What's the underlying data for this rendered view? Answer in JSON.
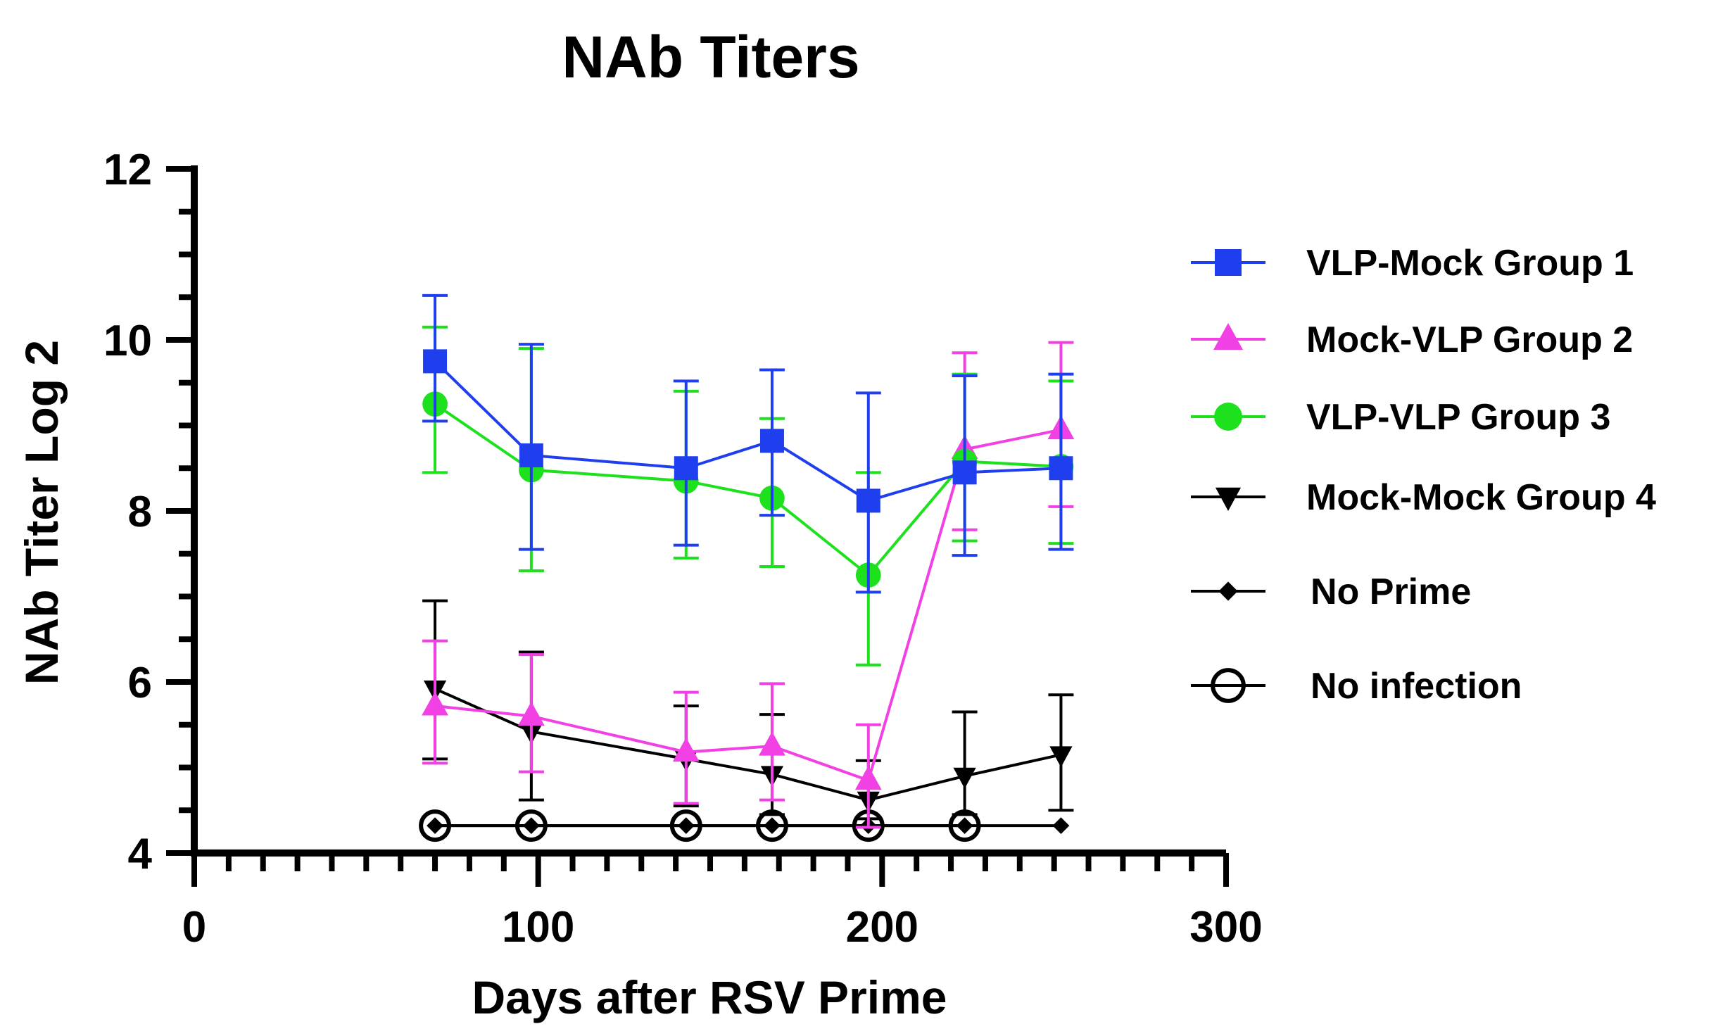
{
  "chart_data": {
    "type": "line",
    "title": "NAb Titers",
    "xlabel": "Days after RSV Prime",
    "ylabel": "NAb Titer Log 2",
    "xlim": [
      0,
      300
    ],
    "ylim": [
      4,
      12
    ],
    "xticks": [
      0,
      100,
      200,
      300
    ],
    "xtick_labels": [
      "0",
      "100",
      "200",
      "300"
    ],
    "yticks": [
      4,
      6,
      8,
      10,
      12
    ],
    "ytick_labels": [
      "4",
      "6",
      "8",
      "10",
      "12"
    ],
    "legend_position": "right",
    "series": [
      {
        "name": "VLP-Mock Group 1",
        "color": "#1f3fef",
        "marker": "square",
        "x": [
          70,
          98,
          143,
          168,
          196,
          224,
          252
        ],
        "y": [
          9.75,
          8.65,
          8.5,
          8.82,
          8.12,
          8.45,
          8.5
        ],
        "err_low": [
          9.05,
          7.55,
          7.6,
          7.95,
          7.05,
          7.48,
          7.55
        ],
        "err_high": [
          10.52,
          9.95,
          9.52,
          9.65,
          9.38,
          9.58,
          9.6
        ]
      },
      {
        "name": "Mock-VLP Group 2",
        "color": "#f140e3",
        "marker": "triangle-up",
        "x": [
          70,
          98,
          143,
          168,
          196,
          224,
          252
        ],
        "y": [
          5.72,
          5.6,
          5.18,
          5.25,
          4.85,
          8.72,
          8.95
        ],
        "err_low": [
          5.05,
          4.95,
          4.58,
          4.62,
          4.3,
          7.78,
          8.05
        ],
        "err_high": [
          6.48,
          6.32,
          5.88,
          5.98,
          5.5,
          9.85,
          9.97
        ]
      },
      {
        "name": "VLP-VLP Group 3",
        "color": "#1ee11e",
        "marker": "circle",
        "x": [
          70,
          98,
          143,
          168,
          196,
          224,
          252
        ],
        "y": [
          9.25,
          8.48,
          8.35,
          8.15,
          7.25,
          8.58,
          8.52
        ],
        "err_low": [
          8.45,
          7.3,
          7.45,
          7.35,
          6.2,
          7.65,
          7.62
        ],
        "err_high": [
          10.15,
          9.9,
          9.4,
          9.08,
          8.45,
          9.6,
          9.52
        ]
      },
      {
        "name": "Mock-Mock Group 4",
        "color": "#000000",
        "marker": "triangle-down",
        "x": [
          70,
          98,
          143,
          168,
          196,
          224,
          252
        ],
        "y": [
          5.92,
          5.42,
          5.1,
          4.92,
          4.62,
          4.9,
          5.15
        ],
        "err_low": [
          5.1,
          4.62,
          4.55,
          4.45,
          4.4,
          4.45,
          4.5
        ],
        "err_high": [
          6.95,
          6.35,
          5.72,
          5.62,
          5.08,
          5.65,
          5.85
        ]
      },
      {
        "name": "No Prime",
        "color": "#000000",
        "marker": "diamond",
        "x": [
          70,
          98,
          143,
          168,
          196,
          224,
          252
        ],
        "y": [
          4.32,
          4.32,
          4.32,
          4.32,
          4.32,
          4.32,
          4.32
        ]
      },
      {
        "name": "No infection",
        "color": "#000000",
        "marker": "open-circle",
        "x": [
          70,
          98,
          143,
          168,
          196,
          224
        ],
        "y": [
          4.32,
          4.32,
          4.32,
          4.32,
          4.32,
          4.32
        ]
      }
    ]
  }
}
